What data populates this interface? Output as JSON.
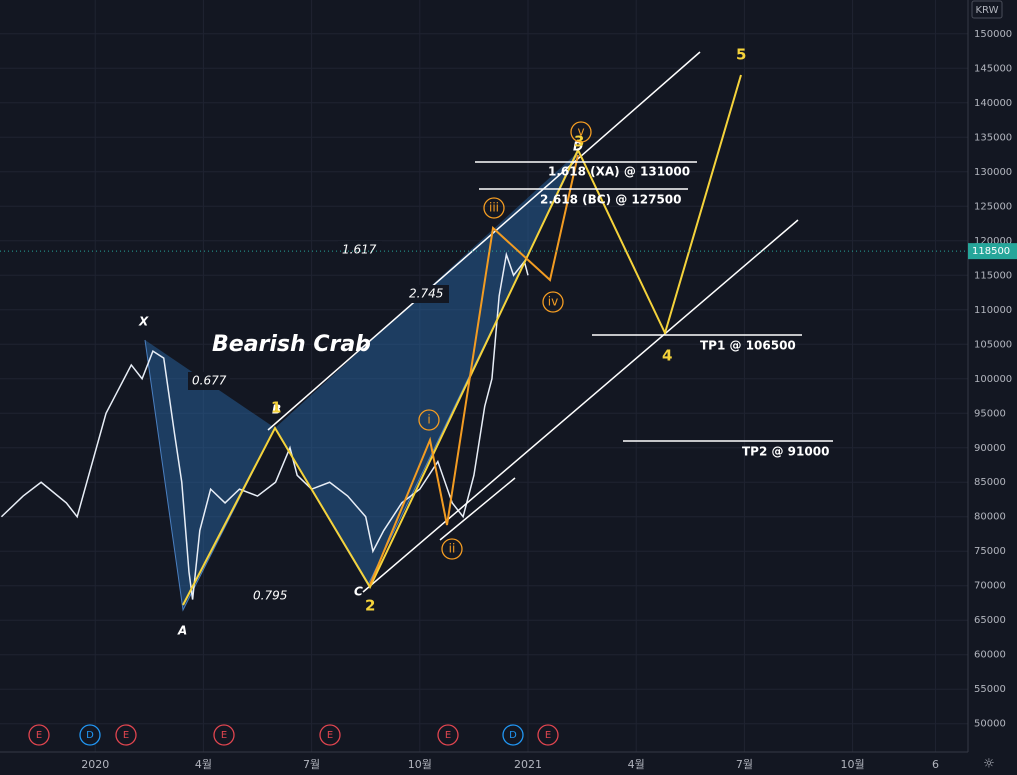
{
  "chart_data": {
    "type": "line",
    "currency": "KRW",
    "ylim": [
      45900,
      154900
    ],
    "yticks": [
      50000,
      55000,
      60000,
      65000,
      70000,
      75000,
      80000,
      85000,
      90000,
      95000,
      100000,
      105000,
      110000,
      115000,
      120000,
      125000,
      130000,
      135000,
      140000,
      145000,
      150000
    ],
    "xlim": [
      -2.64,
      24.2
    ],
    "xticks": [
      {
        "value": 0,
        "label": "2020"
      },
      {
        "value": 3,
        "label": "4월"
      },
      {
        "value": 6,
        "label": "7월"
      },
      {
        "value": 9,
        "label": "10월"
      },
      {
        "value": 12,
        "label": "2021"
      },
      {
        "value": 15,
        "label": "4월"
      },
      {
        "value": 18,
        "label": "7월"
      },
      {
        "value": 21,
        "label": "10월"
      },
      {
        "value": 23.3,
        "label": "6"
      }
    ],
    "last_price": 118500,
    "series": [
      {
        "color": "#e8eef7",
        "x": [
          -2.6,
          -2,
          -1.5,
          -0.8,
          -0.5,
          0.3,
          0.6,
          1,
          1.3,
          1.6,
          1.9,
          2.2,
          2.4,
          2.6,
          2.7,
          2.9,
          3.2,
          3.6,
          4,
          4.5,
          5,
          5.4,
          5.6,
          6,
          6.5,
          7,
          7.5,
          7.7,
          8,
          8.5,
          9,
          9.5,
          9.9,
          10.2,
          10.5,
          10.8,
          11,
          11.2,
          11.4,
          11.6,
          11.9,
          12
        ],
        "values": [
          80000,
          83000,
          85000,
          82000,
          80000,
          95000,
          98000,
          102000,
          100000,
          104000,
          103000,
          92000,
          85000,
          72000,
          68000,
          78000,
          84000,
          82000,
          84000,
          83000,
          85000,
          90000,
          86000,
          84000,
          85000,
          83000,
          80000,
          75000,
          78000,
          82000,
          84000,
          88000,
          82000,
          80000,
          86000,
          96000,
          100000,
          112000,
          118000,
          115000,
          117000,
          115000
        ]
      }
    ],
    "pattern": "Bearish Crab",
    "points": [
      "X",
      "A",
      "B",
      "C",
      "D"
    ],
    "ratios": [
      "0.677",
      "0.795",
      "1.617",
      "2.745"
    ],
    "levels": [
      "1.618 (XA) @ 131000",
      "2.618 (BC) @ 127500",
      "TP1 @ 106500",
      "TP2 @ 91000"
    ],
    "waves": [
      "1",
      "2",
      "3",
      "4",
      "5"
    ],
    "subwaves": [
      "i",
      "ii",
      "iii",
      "iv",
      "v"
    ],
    "events": [
      "E",
      "D",
      "E",
      "E",
      "E",
      "E",
      "D",
      "E"
    ]
  }
}
